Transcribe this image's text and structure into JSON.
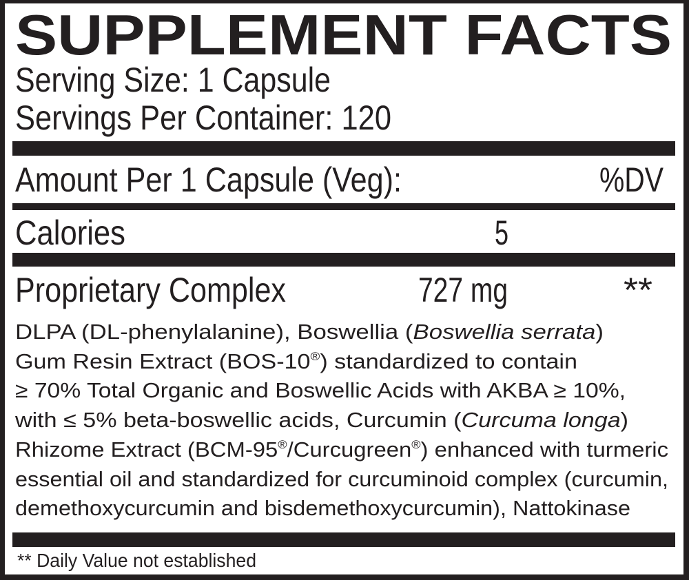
{
  "title": "SUPPLEMENT FACTS",
  "serving_size": "Serving Size: 1 Capsule",
  "servings_per_container": "Servings Per Container: 120",
  "header": {
    "amount_label": "Amount Per 1 Capsule (Veg):",
    "dv_label": "%DV"
  },
  "rows": [
    {
      "name": "Calories",
      "amount": "5",
      "dv": ""
    },
    {
      "name": "Proprietary Complex",
      "amount": "727 mg",
      "dv": "**"
    }
  ],
  "ingredients": [
    [
      {
        "t": "DLPA (DL-phenylalanine), Boswellia ("
      },
      {
        "t": "Boswellia serrata",
        "i": true
      },
      {
        "t": ")"
      }
    ],
    [
      {
        "t": "Gum Resin Extract (BOS-10"
      },
      {
        "t": "®",
        "sup": true
      },
      {
        "t": ") standardized to contain"
      }
    ],
    [
      {
        "t": "≥ 70% Total Organic and Boswellic Acids with AKBA ≥ 10%,"
      }
    ],
    [
      {
        "t": "with ≤ 5% beta-boswellic acids, Curcumin ("
      },
      {
        "t": "Curcuma longa",
        "i": true
      },
      {
        "t": ")"
      }
    ],
    [
      {
        "t": "Rhizome Extract (BCM-95"
      },
      {
        "t": "®",
        "sup": true
      },
      {
        "t": "/Curcugreen"
      },
      {
        "t": "®",
        "sup": true
      },
      {
        "t": ") enhanced with turmeric"
      }
    ],
    [
      {
        "t": "essential oil and standardized for curcuminoid complex (curcumin,"
      }
    ],
    [
      {
        "t": "demethoxycurcumin and bisdemethoxycurcumin), Nattokinase"
      }
    ]
  ],
  "footnote": "** Daily Value not established",
  "colors": {
    "ink": "#231f20",
    "background": "#ffffff"
  }
}
